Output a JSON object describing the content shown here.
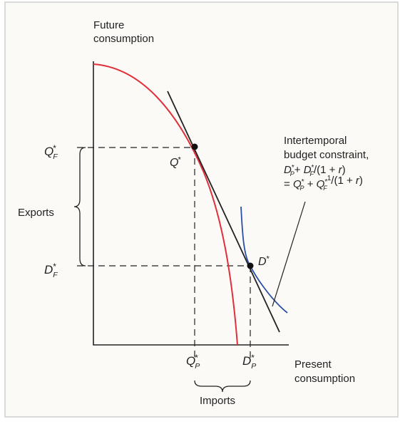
{
  "axes": {
    "y_label": [
      "Future",
      "consumption"
    ],
    "x_label": [
      "Present",
      "consumption"
    ]
  },
  "points": {
    "q_star": {
      "letter": "Q",
      "sup": "*"
    },
    "d_star": {
      "letter": "D",
      "sup": "*"
    }
  },
  "ticks": {
    "q_f": {
      "letter": "Q",
      "sup": "*",
      "sub": "F"
    },
    "d_f": {
      "letter": "D",
      "sup": "*",
      "sub": "F"
    },
    "q_p": {
      "letter": "Q",
      "sup": "*",
      "sub": "P"
    },
    "d_p": {
      "letter": "D",
      "sup": "*",
      "sub": "P"
    }
  },
  "braces": {
    "exports": "Exports",
    "imports": "Imports"
  },
  "annotation": {
    "lines": [
      "Intertemporal",
      "budget constraint,"
    ],
    "formula": [
      [
        {
          "text": "D",
          "style": "it"
        },
        {
          "text": "*",
          "style": "sup"
        },
        {
          "text": "P",
          "style": "sub"
        },
        {
          "text": "+ ",
          "style": "normal"
        },
        {
          "text": "D",
          "style": "it"
        },
        {
          "text": "*",
          "style": "sup"
        },
        {
          "text": "F",
          "style": "sub"
        },
        {
          "text": "/(1 + ",
          "style": "normal"
        },
        {
          "text": "r",
          "style": "it"
        },
        {
          "text": ")",
          "style": "normal"
        }
      ],
      [
        {
          "text": "= ",
          "style": "normal"
        },
        {
          "text": "Q",
          "style": "it"
        },
        {
          "text": "*",
          "style": "sup"
        },
        {
          "text": "P",
          "style": "sub"
        },
        {
          "text": " + ",
          "style": "normal"
        },
        {
          "text": "Q",
          "style": "it"
        },
        {
          "text": "*",
          "style": "sup"
        },
        {
          "text": "F",
          "style": "sub"
        },
        {
          "text": "1",
          "style": "sup"
        },
        {
          "text": "/(1 + ",
          "style": "normal"
        },
        {
          "text": "r",
          "style": "it"
        },
        {
          "text": ")",
          "style": "normal"
        }
      ]
    ]
  }
}
